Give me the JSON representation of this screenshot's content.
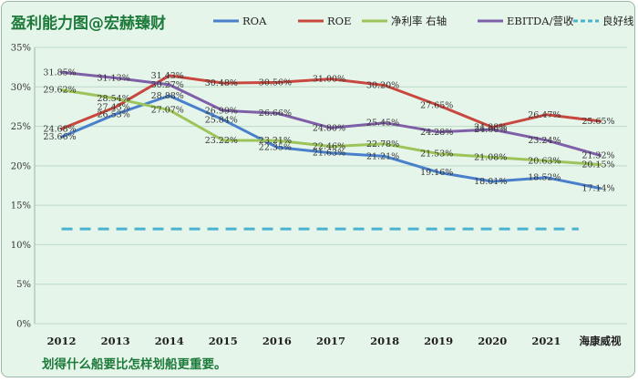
{
  "chart_data": {
    "type": "line",
    "title": "盈利能力图@宏赫臻财",
    "categories": [
      "2012",
      "2013",
      "2014",
      "2015",
      "2016",
      "2017",
      "2018",
      "2019",
      "2020",
      "2021",
      "海康威视"
    ],
    "yticks": [
      "0%",
      "5%",
      "10%",
      "15%",
      "20%",
      "25%",
      "30%",
      "35%"
    ],
    "ylim": [
      0,
      35
    ],
    "grid": true,
    "legend_position": "top",
    "series": [
      {
        "name": "ROA",
        "color": "#4a7fcb",
        "values": [
          23.66,
          26.53,
          28.88,
          25.84,
          22.35,
          21.63,
          21.21,
          19.16,
          18.01,
          18.52,
          17.14
        ],
        "labels": [
          "23.66%",
          "26.53%",
          "28.88%",
          "25.84%",
          "22.35%",
          "21.63%",
          "21.21%",
          "19.16%",
          "18.01%",
          "18.52%",
          "17.14%"
        ]
      },
      {
        "name": "ROE",
        "color": "#c8473e",
        "values": [
          24.68,
          27.43,
          31.43,
          30.48,
          30.56,
          31.0,
          30.2,
          27.65,
          24.88,
          26.47,
          25.65
        ],
        "labels": [
          "24.68%",
          "27.43%",
          "31.43%",
          "30.48%",
          "30.56%",
          "31.00%",
          "30.20%",
          "27.65%",
          "24.88%",
          "26.47%",
          "25.65%"
        ]
      },
      {
        "name": "净利率 右轴",
        "color": "#9dc45a",
        "values": [
          29.62,
          28.54,
          27.07,
          23.22,
          23.21,
          22.46,
          22.78,
          21.53,
          21.08,
          20.63,
          20.15
        ],
        "labels": [
          "29.62%",
          "28.54%",
          "27.07%",
          "23.22%",
          "23.21%",
          "22.46%",
          "22.78%",
          "21.53%",
          "21.08%",
          "20.63%",
          "20.15%"
        ]
      },
      {
        "name": "EBITDA/营收",
        "color": "#7f5fa8",
        "values": [
          31.85,
          31.13,
          30.27,
          26.99,
          26.66,
          24.8,
          25.45,
          24.28,
          24.6,
          23.24,
          21.32
        ],
        "labels": [
          "31.85%",
          "31.13%",
          "30.27%",
          "26.99%",
          "26.66%",
          "24.80%",
          "25.45%",
          "24.28%",
          "24.60%",
          "23.24%",
          "21.32%"
        ]
      }
    ],
    "reference_line": {
      "name": "良好线",
      "value": 12,
      "color": "#4bb3d0",
      "style": "dashed"
    }
  },
  "footer_note": "划得什么船要比怎样划船更重要。",
  "colors": {
    "background": "#e6f5ea",
    "title": "#1c7a3a",
    "footer": "#1c7a3a",
    "grid": "#bcd9c6"
  }
}
